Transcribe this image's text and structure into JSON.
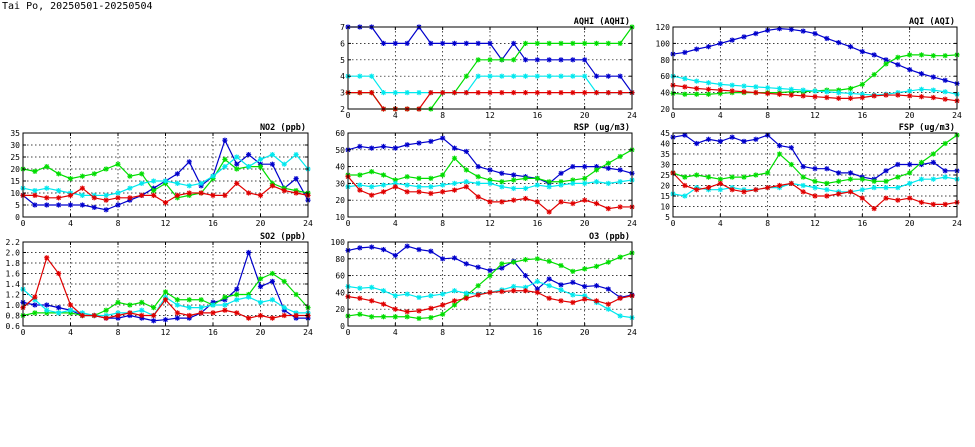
{
  "page": {
    "title": "Tai Po, 20250501-20250504"
  },
  "series_colors": {
    "blue": "#0000cc",
    "green": "#00dd00",
    "cyan": "#00e8ee",
    "red": "#e00000"
  },
  "chart_data": [
    {
      "id": "aqhi",
      "type": "line",
      "title": "AQHI (AQHI)",
      "xlim": [
        0,
        24
      ],
      "ylim": [
        2,
        7
      ],
      "xticks": [
        "0",
        "4",
        "8",
        "12",
        "16",
        "20",
        "24"
      ],
      "yticks": [
        "2",
        "3",
        "4",
        "5",
        "6",
        "7"
      ],
      "grid": true,
      "series": [
        {
          "color": "blue",
          "values": [
            7,
            7,
            7,
            6,
            6,
            6,
            7,
            6,
            6,
            6,
            6,
            6,
            6,
            5,
            6,
            5,
            5,
            5,
            5,
            5,
            5,
            4,
            4,
            4,
            3
          ]
        },
        {
          "color": "green",
          "values": [
            3,
            3,
            3,
            2,
            2,
            2,
            2,
            2,
            3,
            3,
            4,
            5,
            5,
            5,
            5,
            6,
            6,
            6,
            6,
            6,
            6,
            6,
            6,
            6,
            7
          ]
        },
        {
          "color": "cyan",
          "values": [
            4,
            4,
            4,
            3,
            3,
            3,
            3,
            3,
            3,
            3,
            3,
            4,
            4,
            4,
            4,
            4,
            4,
            4,
            4,
            4,
            4,
            3,
            3,
            3,
            3
          ]
        },
        {
          "color": "red",
          "values": [
            3,
            3,
            3,
            2,
            2,
            2,
            2,
            3,
            3,
            3,
            3,
            3,
            3,
            3,
            3,
            3,
            3,
            3,
            3,
            3,
            3,
            3,
            3,
            3,
            3
          ]
        }
      ]
    },
    {
      "id": "aqi",
      "type": "line",
      "title": "AQI (AQI)",
      "xlim": [
        0,
        24
      ],
      "ylim": [
        20,
        120
      ],
      "xticks": [
        "0",
        "4",
        "8",
        "12",
        "16",
        "20",
        "24"
      ],
      "yticks": [
        "20",
        "40",
        "60",
        "80",
        "100",
        "120"
      ],
      "grid": true,
      "series": [
        {
          "color": "blue",
          "values": [
            87,
            89,
            93,
            96,
            100,
            104,
            108,
            112,
            116,
            118,
            117,
            115,
            112,
            106,
            101,
            96,
            90,
            86,
            80,
            74,
            68,
            63,
            59,
            55,
            51
          ]
        },
        {
          "color": "green",
          "values": [
            39,
            38,
            38,
            38,
            39,
            40,
            40,
            40,
            40,
            40,
            41,
            41,
            42,
            43,
            43,
            45,
            50,
            62,
            75,
            83,
            86,
            86,
            85,
            85,
            86
          ]
        },
        {
          "color": "cyan",
          "values": [
            60,
            57,
            54,
            52,
            50,
            49,
            48,
            47,
            46,
            45,
            44,
            43,
            42,
            41,
            40,
            39,
            38,
            37,
            38,
            40,
            42,
            44,
            43,
            41,
            38
          ]
        },
        {
          "color": "red",
          "values": [
            49,
            47,
            45,
            44,
            43,
            42,
            41,
            40,
            39,
            38,
            37,
            36,
            35,
            34,
            33,
            33,
            34,
            36,
            37,
            37,
            36,
            35,
            34,
            32,
            30
          ]
        }
      ]
    },
    {
      "id": "no2",
      "type": "line",
      "title": "NO2 (ppb)",
      "xlim": [
        0,
        24
      ],
      "ylim": [
        0,
        35
      ],
      "xticks": [
        "0",
        "4",
        "8",
        "12",
        "16",
        "20",
        "24"
      ],
      "yticks": [
        "0",
        "5",
        "10",
        "15",
        "20",
        "25",
        "30",
        "35"
      ],
      "grid": true,
      "series": [
        {
          "color": "blue",
          "values": [
            9,
            5,
            5,
            5,
            5,
            5,
            4,
            3,
            5,
            7,
            9,
            12,
            15,
            18,
            23,
            13,
            17,
            32,
            22,
            26,
            22,
            22,
            12,
            16,
            7
          ]
        },
        {
          "color": "green",
          "values": [
            20,
            19,
            21,
            18,
            16,
            17,
            18,
            20,
            22,
            17,
            18,
            11,
            14,
            8,
            9,
            10,
            16,
            24,
            20,
            21,
            21,
            14,
            12,
            11,
            10
          ]
        },
        {
          "color": "cyan",
          "values": [
            12,
            11,
            12,
            11,
            10,
            9,
            9,
            9,
            10,
            12,
            14,
            15,
            15,
            14,
            13,
            14,
            17,
            21,
            25,
            21,
            24,
            26,
            22,
            26,
            20
          ]
        },
        {
          "color": "red",
          "values": [
            9,
            9,
            8,
            8,
            9,
            12,
            8,
            7,
            8,
            8,
            9,
            9,
            6,
            9,
            10,
            10,
            9,
            9,
            14,
            10,
            9,
            13,
            11,
            10,
            9
          ]
        }
      ]
    },
    {
      "id": "rsp",
      "type": "line",
      "title": "RSP (ug/m3)",
      "xlim": [
        0,
        24
      ],
      "ylim": [
        10,
        60
      ],
      "xticks": [
        "0",
        "4",
        "8",
        "12",
        "16",
        "20",
        "24"
      ],
      "yticks": [
        "10",
        "20",
        "30",
        "40",
        "50",
        "60"
      ],
      "grid": true,
      "series": [
        {
          "color": "blue",
          "values": [
            50,
            52,
            51,
            52,
            51,
            53,
            54,
            55,
            57,
            51,
            49,
            40,
            38,
            36,
            35,
            34,
            33,
            30,
            36,
            40,
            40,
            40,
            39,
            38,
            36
          ]
        },
        {
          "color": "green",
          "values": [
            35,
            35,
            37,
            35,
            32,
            34,
            33,
            33,
            35,
            45,
            38,
            34,
            32,
            31,
            32,
            33,
            33,
            31,
            31,
            32,
            33,
            38,
            42,
            46,
            50
          ]
        },
        {
          "color": "cyan",
          "values": [
            28,
            29,
            28,
            29,
            30,
            29,
            28,
            28,
            29,
            30,
            31,
            30,
            30,
            28,
            27,
            27,
            29,
            28,
            29,
            30,
            30,
            31,
            30,
            31,
            32
          ]
        },
        {
          "color": "red",
          "values": [
            34,
            26,
            23,
            25,
            28,
            25,
            25,
            24,
            25,
            26,
            28,
            22,
            19,
            19,
            20,
            21,
            19,
            13,
            19,
            18,
            20,
            18,
            15,
            16,
            16
          ]
        }
      ]
    },
    {
      "id": "fsp",
      "type": "line",
      "title": "FSP (ug/m3)",
      "xlim": [
        0,
        24
      ],
      "ylim": [
        5,
        45
      ],
      "xticks": [
        "0",
        "4",
        "8",
        "12",
        "16",
        "20",
        "24"
      ],
      "yticks": [
        "5",
        "10",
        "15",
        "20",
        "25",
        "30",
        "35",
        "40",
        "45"
      ],
      "grid": true,
      "series": [
        {
          "color": "blue",
          "values": [
            43,
            44,
            40,
            42,
            41,
            43,
            41,
            42,
            44,
            39,
            38,
            29,
            28,
            28,
            26,
            26,
            24,
            23,
            27,
            30,
            30,
            30,
            31,
            27,
            27
          ]
        },
        {
          "color": "green",
          "values": [
            26,
            24,
            25,
            24,
            23,
            24,
            24,
            25,
            26,
            35,
            30,
            24,
            22,
            21,
            22,
            23,
            23,
            22,
            22,
            24,
            26,
            31,
            35,
            40,
            44
          ]
        },
        {
          "color": "cyan",
          "values": [
            16,
            15,
            19,
            18,
            18,
            19,
            18,
            18,
            19,
            19,
            21,
            20,
            19,
            18,
            17,
            17,
            18,
            19,
            19,
            19,
            21,
            23,
            23,
            24,
            23
          ]
        },
        {
          "color": "red",
          "values": [
            26,
            20,
            18,
            19,
            21,
            18,
            17,
            18,
            19,
            20,
            21,
            17,
            15,
            15,
            16,
            17,
            14,
            9,
            14,
            13,
            14,
            12,
            11,
            11,
            12
          ]
        }
      ]
    },
    {
      "id": "so2",
      "type": "line",
      "title": "SO2 (ppb)",
      "xlim": [
        0,
        24
      ],
      "ylim": [
        0.6,
        2.2
      ],
      "xticks": [
        "0",
        "4",
        "8",
        "12",
        "16",
        "20",
        "24"
      ],
      "yticks": [
        "0.6",
        "0.8",
        "1.0",
        "1.2",
        "1.4",
        "1.6",
        "1.8",
        "2.0",
        "2.2"
      ],
      "grid": true,
      "series": [
        {
          "color": "blue",
          "values": [
            1.05,
            1.0,
            1.0,
            0.95,
            0.9,
            0.8,
            0.8,
            0.75,
            0.75,
            0.8,
            0.75,
            0.7,
            0.72,
            0.75,
            0.75,
            0.85,
            1.05,
            1.1,
            1.3,
            2.0,
            1.35,
            1.45,
            0.9,
            0.75,
            0.75
          ]
        },
        {
          "color": "green",
          "values": [
            0.8,
            0.85,
            0.85,
            0.85,
            0.85,
            0.8,
            0.8,
            0.9,
            1.05,
            1.0,
            1.05,
            0.95,
            1.25,
            1.1,
            1.1,
            1.1,
            1.0,
            1.15,
            1.2,
            1.2,
            1.5,
            1.6,
            1.45,
            1.2,
            0.95
          ]
        },
        {
          "color": "cyan",
          "values": [
            1.3,
            1.1,
            0.9,
            0.85,
            0.9,
            0.85,
            0.8,
            0.8,
            0.85,
            0.85,
            0.9,
            0.8,
            1.15,
            1.0,
            0.95,
            0.95,
            1.0,
            1.0,
            1.1,
            1.15,
            1.05,
            1.1,
            0.95,
            0.85,
            0.85
          ]
        },
        {
          "color": "red",
          "values": [
            0.95,
            1.15,
            1.9,
            1.6,
            1.0,
            0.8,
            0.8,
            0.75,
            0.8,
            0.85,
            0.8,
            0.8,
            1.1,
            0.85,
            0.8,
            0.85,
            0.85,
            0.9,
            0.85,
            0.75,
            0.8,
            0.75,
            0.8,
            0.8,
            0.8
          ]
        }
      ]
    },
    {
      "id": "o3",
      "type": "line",
      "title": "O3 (ppb)",
      "xlim": [
        0,
        24
      ],
      "ylim": [
        0,
        100
      ],
      "xticks": [
        "0",
        "4",
        "8",
        "12",
        "16",
        "20",
        "24"
      ],
      "yticks": [
        "0",
        "20",
        "40",
        "60",
        "80",
        "100"
      ],
      "grid": true,
      "series": [
        {
          "color": "blue",
          "values": [
            90,
            93,
            94,
            91,
            84,
            95,
            91,
            89,
            80,
            81,
            74,
            70,
            66,
            69,
            77,
            60,
            44,
            56,
            49,
            52,
            47,
            48,
            44,
            34,
            37
          ]
        },
        {
          "color": "green",
          "values": [
            12,
            14,
            11,
            11,
            11,
            11,
            9,
            10,
            14,
            25,
            36,
            48,
            60,
            74,
            76,
            79,
            80,
            77,
            72,
            65,
            68,
            71,
            76,
            82,
            87
          ]
        },
        {
          "color": "cyan",
          "values": [
            47,
            45,
            46,
            42,
            36,
            38,
            34,
            36,
            38,
            42,
            39,
            38,
            40,
            43,
            47,
            46,
            53,
            48,
            43,
            37,
            36,
            28,
            20,
            12,
            10
          ]
        },
        {
          "color": "red",
          "values": [
            35,
            33,
            30,
            26,
            20,
            17,
            18,
            21,
            25,
            30,
            33,
            37,
            40,
            41,
            42,
            42,
            40,
            33,
            30,
            28,
            32,
            30,
            26,
            33,
            36
          ]
        }
      ]
    }
  ]
}
